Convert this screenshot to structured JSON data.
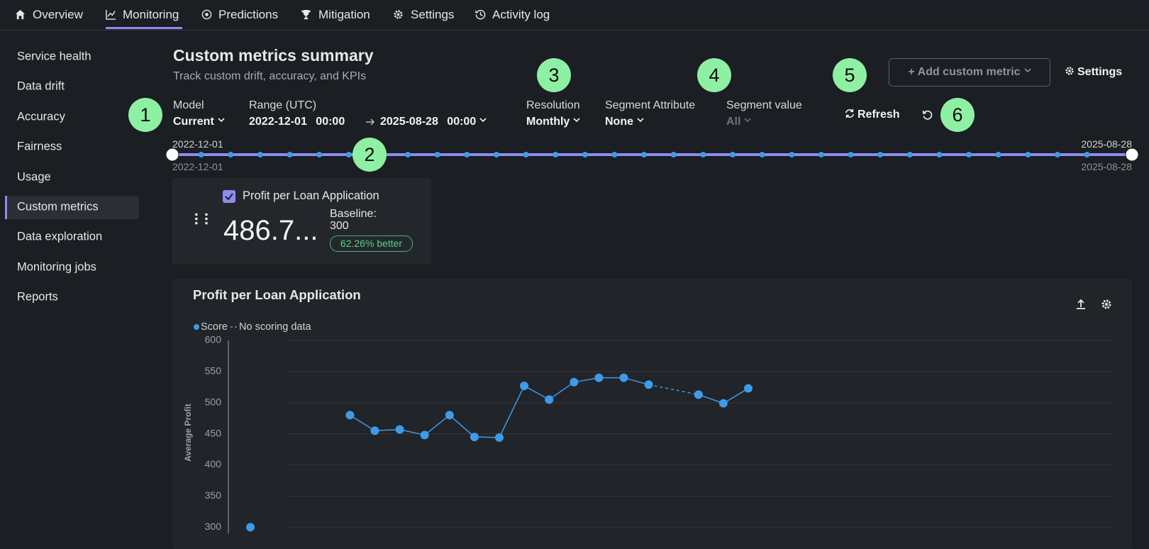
{
  "nav": {
    "items": [
      "Overview",
      "Monitoring",
      "Predictions",
      "Mitigation",
      "Settings",
      "Activity log"
    ]
  },
  "sidebar": {
    "items": [
      "Service health",
      "Data drift",
      "Accuracy",
      "Fairness",
      "Usage",
      "Custom metrics",
      "Data exploration",
      "Monitoring jobs",
      "Reports"
    ]
  },
  "header": {
    "title": "Custom metrics summary",
    "subtitle": "Track custom drift, accuracy, and KPIs"
  },
  "controls": {
    "model": {
      "label": "Model",
      "value": "Current"
    },
    "range": {
      "label": "Range (UTC)",
      "start": "2022-12-01 00:00",
      "end": "2025-08-28 00:00"
    },
    "resolution": {
      "label": "Resolution",
      "value": "Monthly"
    },
    "segment_attribute": {
      "label": "Segment Attribute",
      "value": "None"
    },
    "segment_value": {
      "label": "Segment value",
      "value": "All"
    },
    "refresh": "Refresh",
    "add_metric": "+ Add custom metric",
    "settings": "Settings"
  },
  "annotations": [
    "1",
    "2",
    "3",
    "4",
    "5",
    "6"
  ],
  "slider": {
    "start_top": "2022-12-01",
    "start_bottom": "2022-12-01",
    "end_top": "2025-08-28",
    "end_bottom": "2025-08-28"
  },
  "summary_card": {
    "name": "Profit per Loan Application",
    "value": "486.7...",
    "baseline_label": "Baseline:",
    "baseline": 300,
    "change": "62.26% better"
  },
  "chart_data": {
    "type": "line",
    "title": "Profit per Loan Application",
    "y_label": "Average Profit",
    "gap_label": "No scoring data",
    "categories": [
      null,
      null,
      null,
      null,
      null,
      null,
      null,
      null,
      null,
      null,
      null,
      null,
      null,
      null,
      null,
      null,
      null,
      null,
      null,
      null,
      null
    ],
    "series": [
      {
        "name": "Score",
        "color": "#3d9be9",
        "values": [
          300,
          null,
          null,
          null,
          480,
          455,
          457,
          448,
          480,
          445,
          444,
          527,
          505,
          533,
          540,
          540,
          529,
          null,
          513,
          499,
          523
        ]
      }
    ],
    "ylim": [
      290,
      600
    ],
    "yticks": [
      300,
      350,
      400,
      450,
      500,
      550,
      600
    ],
    "grid": true
  }
}
